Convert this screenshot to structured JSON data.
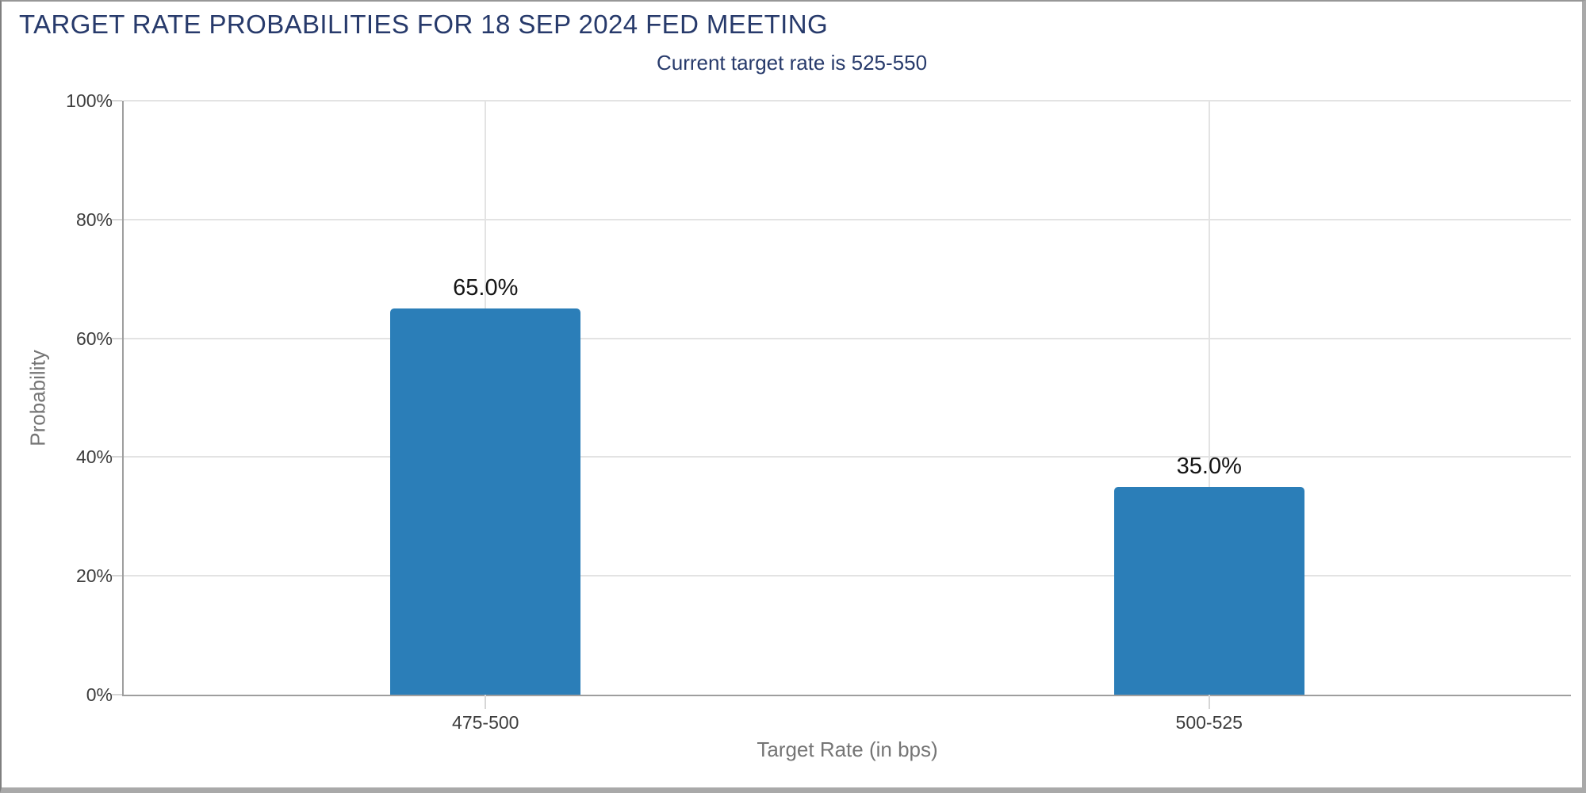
{
  "chart_data": {
    "type": "bar",
    "title": "TARGET RATE PROBABILITIES FOR 18 SEP 2024 FED MEETING",
    "subtitle": "Current target rate is 525-550",
    "xlabel": "Target Rate (in bps)",
    "ylabel": "Probability",
    "categories": [
      "475-500",
      "500-525"
    ],
    "values": [
      65.0,
      35.0
    ],
    "value_labels": [
      "65.0%",
      "35.0%"
    ],
    "ylim": [
      0,
      100
    ],
    "y_ticks": [
      0,
      20,
      40,
      60,
      80,
      100
    ],
    "y_tick_labels": [
      "0%",
      "20%",
      "40%",
      "60%",
      "80%",
      "100%"
    ],
    "grid": true,
    "legend": "none",
    "colors": {
      "bar": "#2b7eb8",
      "title": "#273a6b",
      "subtitle": "#273a6b",
      "tick_label": "#3d3d3d",
      "axis_label": "#757575",
      "gridline": "#e3e3e3",
      "tick_mark": "#d6d6d6",
      "axis_line": "#9e9e9e",
      "value_label": "#141414",
      "background": "#ffffff"
    }
  }
}
